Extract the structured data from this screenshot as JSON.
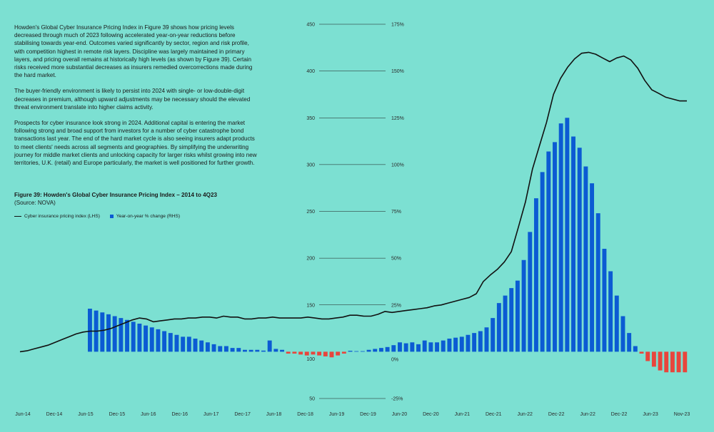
{
  "paragraphs": [
    "Howden's Global Cyber Insurance Pricing Index in Figure 39 shows how pricing levels decreased through much of 2023 following accelerated year-on-year reductions before stabilising towards year-end. Outcomes varied significantly by sector, region and risk profile, with competition highest in remote risk layers. Discipline was largely maintained in primary layers, and pricing overall remains at historically high levels (as shown by Figure 39). Certain risks received more substantial decreases as insurers remedied overcorrections made during the hard market.",
    "The buyer-friendly environment is likely to persist into 2024 with single- or low-double-digit decreases in premium, although upward adjustments may be necessary should the elevated threat environment translate into higher claims activity.",
    "Prospects for cyber insurance look strong in 2024. Additional capital is entering the market following strong and broad support from investors for a number of cyber catastrophe bond transactions last year. The end of the hard market cycle is also seeing insurers adapt products to meet clients' needs across all segments and geographies. By simplifying the underwriting journey for middle market clients and unlocking capacity for larger risks whilst growing into new territories, U.K. (retail) and Europe particularly, the market is well positioned for further growth."
  ],
  "figure": {
    "title": "Figure 39: Howden's Global Cyber Insurance Pricing Index – 2014 to 4Q23",
    "source": "(Source: NOVA)"
  },
  "legend": {
    "line_label": "Cyber insurance pricing index (LHS)",
    "bar_label": "Year-on-year % change (RHS)"
  },
  "colors": {
    "background": "#7ce0d2",
    "line": "#111111",
    "bar_positive": "#0b5bd3",
    "bar_negative": "#e8453c"
  },
  "chart_data": {
    "type": "bar+line",
    "x_tick_labels": [
      "Jun-14",
      "Dec-14",
      "Jun-15",
      "Dec-15",
      "Jun-16",
      "Dec-16",
      "Jun-17",
      "Dec-17",
      "Jun-18",
      "Dec-18",
      "Jun-19",
      "Dec-19",
      "Jun-20",
      "Dec-20",
      "Jun-21",
      "Dec-21",
      "Jun-22",
      "Dec-22",
      "Jun-22",
      "Dec-22",
      "Jun-23",
      "Nov-23"
    ],
    "y_left_ticks": [
      50,
      100,
      150,
      200,
      250,
      300,
      350,
      400,
      450
    ],
    "y_left_tick_labels": [
      "50",
      "100",
      "150",
      "200",
      "250",
      "300",
      "350",
      "400",
      "450"
    ],
    "y_right_ticks": [
      -25,
      0,
      25,
      50,
      75,
      100,
      125,
      150,
      175
    ],
    "y_right_tick_labels": [
      "-25%",
      "0%",
      "25%",
      "50%",
      "75%",
      "100%",
      "125%",
      "150%",
      "175%"
    ],
    "y_left_range": [
      50,
      450
    ],
    "y_right_range": [
      -25,
      175
    ],
    "series": [
      {
        "name": "Cyber insurance pricing index (LHS)",
        "type": "line",
        "axis": "left",
        "values": [
          100,
          101,
          103,
          105,
          107,
          110,
          113,
          116,
          119,
          121,
          122,
          122,
          123,
          125,
          128,
          131,
          134,
          136,
          135,
          132,
          133,
          134,
          135,
          135,
          136,
          136,
          137,
          137,
          136,
          138,
          137,
          137,
          135,
          135,
          136,
          136,
          137,
          136,
          136,
          136,
          136,
          137,
          136,
          135,
          135,
          136,
          137,
          139,
          139,
          138,
          138,
          140,
          143,
          142,
          143,
          144,
          145,
          146,
          147,
          149,
          150,
          152,
          154,
          156,
          158,
          162,
          175,
          182,
          188,
          196,
          207,
          233,
          260,
          295,
          320,
          345,
          375,
          392,
          404,
          413,
          419,
          420,
          418,
          414,
          410,
          414,
          416,
          412,
          403,
          390,
          380,
          376,
          372,
          370,
          368,
          368
        ]
      },
      {
        "name": "Year-on-year % change (RHS)",
        "type": "bar",
        "axis": "right",
        "values": [
          23,
          22,
          21,
          20,
          19,
          18,
          17,
          16,
          15,
          14,
          13,
          12,
          11,
          10,
          9,
          8,
          8,
          7,
          6,
          5,
          4,
          3,
          3,
          2,
          2,
          1,
          1,
          1,
          0.6,
          6,
          1.5,
          1,
          -1,
          -1,
          -1.5,
          -2,
          -1.5,
          -2,
          -2.5,
          -3,
          -2,
          -1,
          0.5,
          0.3,
          0.3,
          1,
          1.5,
          2,
          2.5,
          3.5,
          5,
          4.5,
          5,
          4,
          6,
          5,
          5,
          6,
          7,
          7.5,
          8,
          9,
          10,
          11,
          13,
          18,
          26,
          30,
          34,
          38,
          49,
          64,
          82,
          96,
          107,
          112,
          122,
          125,
          115,
          109,
          99,
          90,
          74,
          55,
          43,
          30,
          19,
          10,
          3,
          -1,
          -5,
          -8,
          -10,
          -11,
          -11,
          -11,
          -11
        ]
      }
    ]
  }
}
